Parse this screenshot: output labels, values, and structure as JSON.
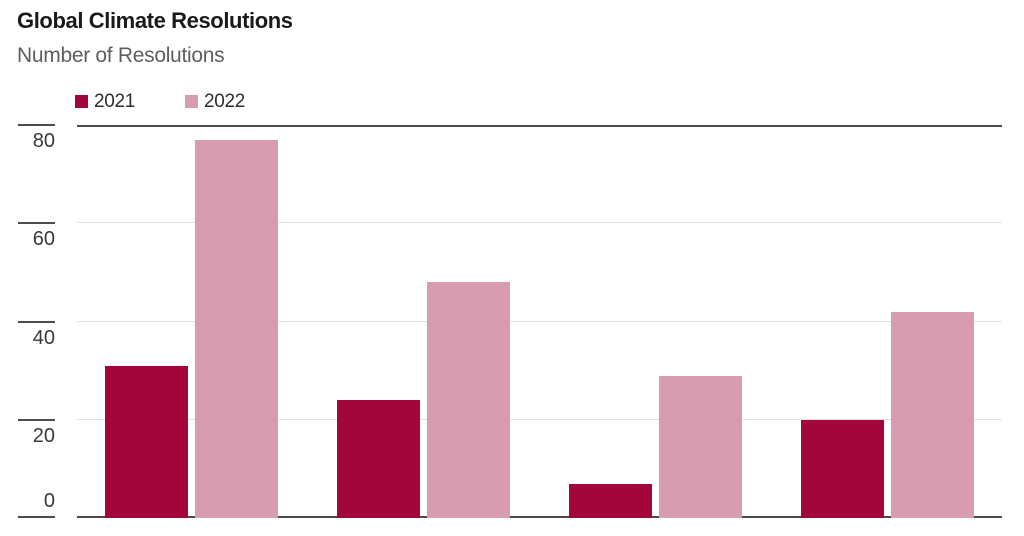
{
  "header": {
    "title": "Global Climate Resolutions",
    "subtitle": "Number of Resolutions"
  },
  "legend": {
    "items": [
      {
        "label": "2021",
        "color": "#A2063B"
      },
      {
        "label": "2022",
        "color": "#D89CB0"
      }
    ]
  },
  "chart_data": {
    "type": "bar",
    "title": "Global Climate Resolutions",
    "subtitle": "Number of Resolutions",
    "categories": [
      "",
      "",
      "",
      ""
    ],
    "series": [
      {
        "name": "2021",
        "color": "#A2063B",
        "values": [
          31,
          24,
          7,
          20
        ]
      },
      {
        "name": "2022",
        "color": "#D89CB0",
        "values": [
          77,
          48,
          29,
          42
        ]
      }
    ],
    "xlabel": "",
    "ylabel": "Number of Resolutions",
    "ylim": [
      0,
      80
    ],
    "y_ticks": [
      80,
      60,
      40,
      20,
      0
    ],
    "grid": true,
    "legend_position": "top-left",
    "x_axis_labels_visible": false
  },
  "colors": {
    "axis_dark": "#4D4D4D",
    "grid_light": "#E1E1E1",
    "title_text": "#1A1A1A",
    "subtitle_text": "#5E5E5E",
    "tick_text": "#3A3A3A",
    "background": "#FFFFFF"
  }
}
